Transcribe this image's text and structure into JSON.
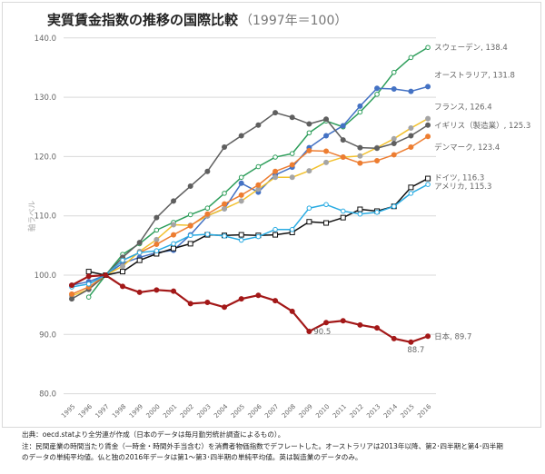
{
  "chart_data": {
    "type": "line",
    "title": "実質賃金指数の推移の国際比較",
    "subtitle": "（1997年＝100）",
    "xlabel": "",
    "ylabel": "軸ラベル",
    "ylim": [
      80,
      140
    ],
    "yticks": [
      "80.0",
      "90.0",
      "100.0",
      "110.0",
      "120.0",
      "130.0",
      "140.0"
    ],
    "ytick_values": [
      80,
      90,
      100,
      110,
      120,
      130,
      140
    ],
    "grid": true,
    "x": [
      "1995",
      "1996",
      "1997",
      "1998",
      "1999",
      "2000",
      "2001",
      "2002",
      "2003",
      "2004",
      "2005",
      "2006",
      "2007",
      "2008",
      "2009",
      "2010",
      "2011",
      "2012",
      "2013",
      "2014",
      "2015",
      "2016"
    ],
    "series": [
      {
        "name": "スウェーデン",
        "end_label": "スウェーデン, 138.4",
        "color": "#2e9e5b",
        "marker": "hollow-circle",
        "values": [
          null,
          96.3,
          100,
          103.5,
          105.3,
          107.6,
          108.9,
          110.2,
          111.3,
          113.8,
          116.5,
          118.3,
          119.9,
          120.5,
          124.0,
          126.0,
          125.0,
          127.5,
          130.5,
          134.2,
          136.7,
          138.4
        ]
      },
      {
        "name": "オーストラリア",
        "end_label": "オーストラリア, 131.8",
        "color": "#4472c4",
        "marker": "filled-circle",
        "values": [
          98.3,
          98.9,
          100,
          102.0,
          103.0,
          103.8,
          104.2,
          106.8,
          110.0,
          111.2,
          115.5,
          114.0,
          116.9,
          118.2,
          121.5,
          123.5,
          125.2,
          128.5,
          131.5,
          131.4,
          131.0,
          131.8
        ]
      },
      {
        "name": "フランス",
        "end_label": "フランス, 126.4",
        "color": "#f2c12e",
        "marker": "filled-circle-gray",
        "values": [
          96.5,
          97.6,
          100,
          101.5,
          104.0,
          106.0,
          108.5,
          108.4,
          110.0,
          111.2,
          112.5,
          114.5,
          116.5,
          116.5,
          117.6,
          119.0,
          119.9,
          120.1,
          121.5,
          123.0,
          124.8,
          126.4
        ]
      },
      {
        "name": "イギリス（製造業）",
        "end_label": "イギリス（製造業）, 125.3",
        "color": "#5f5f5f",
        "marker": "filled-circle",
        "values": [
          96.0,
          97.6,
          100,
          103.0,
          105.5,
          109.7,
          112.5,
          115.0,
          117.5,
          121.6,
          123.5,
          125.3,
          127.4,
          126.6,
          125.5,
          126.3,
          122.8,
          121.5,
          121.4,
          122.2,
          123.5,
          125.3
        ]
      },
      {
        "name": "デンマーク",
        "end_label": "デンマーク, 123.4",
        "color": "#ed7d31",
        "marker": "filled-circle",
        "values": [
          96.8,
          98.0,
          100,
          102.5,
          103.8,
          105.2,
          106.8,
          108.3,
          110.3,
          112.0,
          113.5,
          115.2,
          117.5,
          118.6,
          121.0,
          120.9,
          119.9,
          118.9,
          119.3,
          120.3,
          121.6,
          123.4
        ]
      },
      {
        "name": "ドイツ",
        "end_label": "ドイツ, 116.3",
        "color": "#111111",
        "marker": "hollow-square",
        "values": [
          null,
          100.6,
          100,
          100.6,
          102.5,
          103.6,
          104.5,
          105.3,
          106.8,
          106.7,
          106.8,
          106.7,
          106.8,
          107.2,
          109.0,
          108.8,
          109.7,
          111.1,
          110.8,
          111.6,
          114.8,
          116.3
        ]
      },
      {
        "name": "アメリカ",
        "end_label": "アメリカ, 115.3",
        "color": "#29abe2",
        "marker": "hollow-circle",
        "values": [
          98.0,
          98.5,
          100,
          102.5,
          103.8,
          104.1,
          105.3,
          106.7,
          106.9,
          106.6,
          105.9,
          106.5,
          107.7,
          107.7,
          111.3,
          111.9,
          110.8,
          110.3,
          110.6,
          111.6,
          113.8,
          115.3
        ]
      },
      {
        "name": "日本",
        "end_label": "日本, 89.7",
        "color": "#a31818",
        "marker": "filled-circle",
        "values": [
          98.3,
          99.8,
          100,
          98.1,
          97.1,
          97.5,
          97.3,
          95.2,
          95.4,
          94.6,
          96.0,
          96.6,
          95.7,
          93.9,
          90.5,
          92.0,
          92.3,
          91.6,
          91.1,
          89.3,
          88.7,
          89.7
        ]
      }
    ],
    "annotations": [
      {
        "text": "90.5",
        "series": "日本",
        "x": "2009"
      },
      {
        "text": "88.7",
        "series": "日本",
        "x": "2015"
      }
    ]
  },
  "footer": {
    "line1": "出典：oecd.statより全労連が作成（日本のデータは毎月勤労統計調査によるもの）。",
    "line2": "注：民間産業の時間当たり賃金（一時金・時間外手当含む）を消費者物価指数でデフレートした。オーストラリアは2013年以降、第2･四半期と第4･四半期",
    "line3": "のデータの単純平均値。仏と独の2016年データは第1～第3･四半期の単純平均値。英は製造業のデータのみ。"
  }
}
